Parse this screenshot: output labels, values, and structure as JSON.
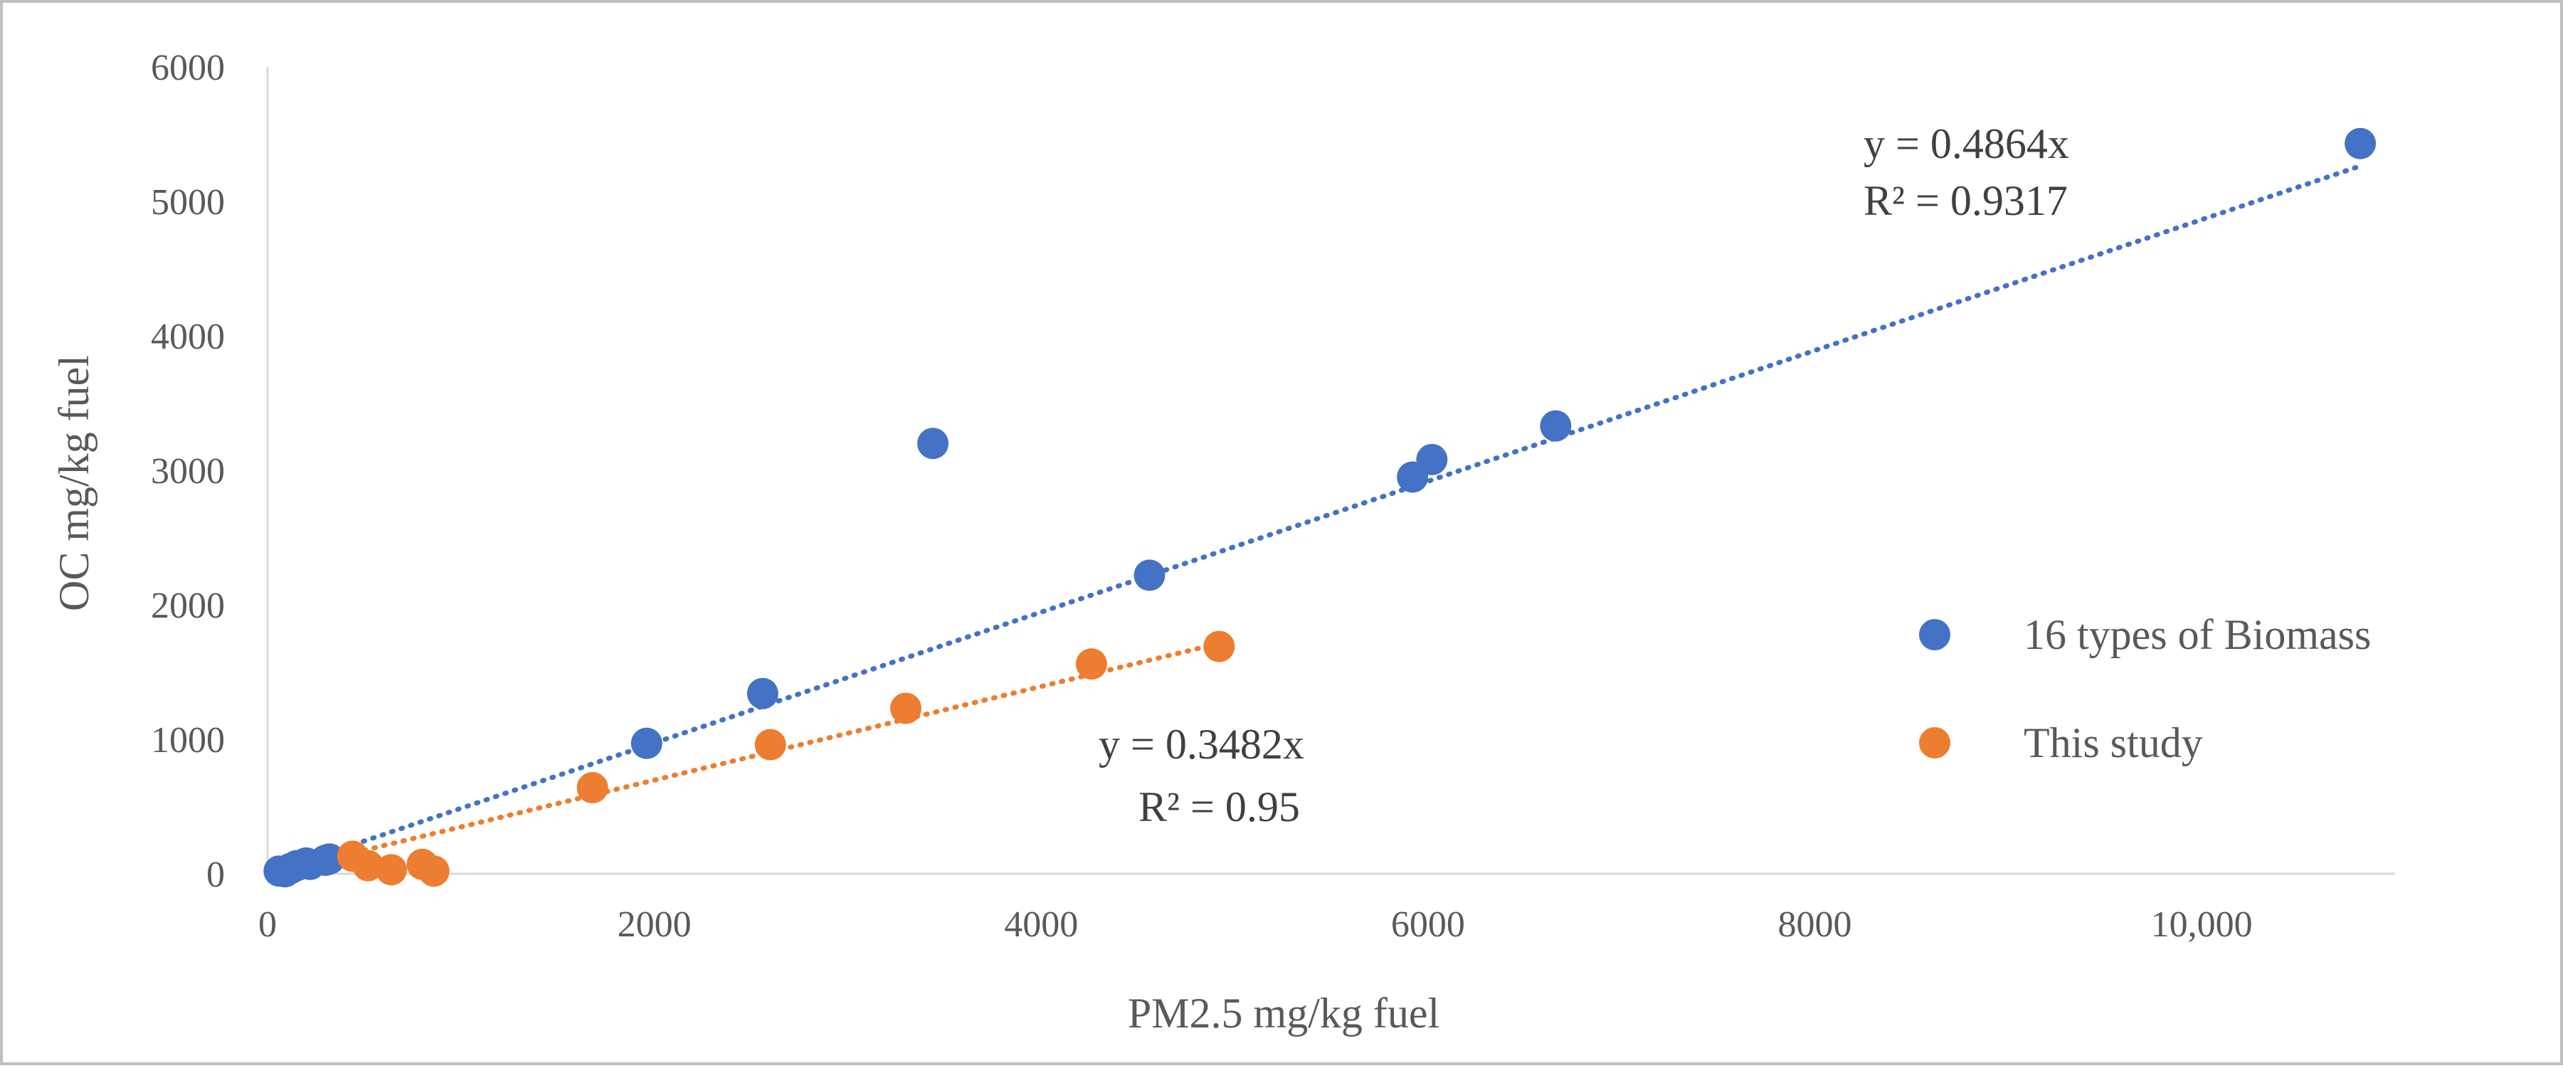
{
  "chart_data": {
    "type": "scatter",
    "title": "",
    "xlabel": "PM2.5 mg/kg fuel",
    "ylabel": "OC mg/kg fuel",
    "xlim": [
      0,
      11000
    ],
    "ylim": [
      0,
      6000
    ],
    "x_ticks": [
      0,
      2000,
      4000,
      6000,
      8000,
      10000
    ],
    "x_tick_labels": [
      "0",
      "2000",
      "4000",
      "6000",
      "8000",
      "10,000"
    ],
    "y_ticks": [
      0,
      1000,
      2000,
      3000,
      4000,
      5000,
      6000
    ],
    "y_tick_labels": [
      "0",
      "1000",
      "2000",
      "3000",
      "4000",
      "5000",
      "6000"
    ],
    "grid": false,
    "legend_position": "right",
    "series": [
      {
        "name": "16 types of Biomass",
        "color": "#4472C4",
        "points": [
          [
            60,
            20
          ],
          [
            90,
            15
          ],
          [
            120,
            40
          ],
          [
            150,
            60
          ],
          [
            200,
            80
          ],
          [
            220,
            70
          ],
          [
            300,
            100
          ],
          [
            320,
            110
          ],
          [
            1960,
            970
          ],
          [
            2560,
            1340
          ],
          [
            3440,
            3200
          ],
          [
            4560,
            2220
          ],
          [
            5920,
            2950
          ],
          [
            6020,
            3080
          ],
          [
            6660,
            3330
          ],
          [
            10820,
            5430
          ]
        ],
        "trendline": {
          "slope": 0.4864,
          "x_range": [
            0,
            10820
          ],
          "equation": "y = 0.4864x",
          "r2": "R² = 0.9317"
        }
      },
      {
        "name": "This study",
        "color": "#ED7D31",
        "points": [
          [
            440,
            130
          ],
          [
            520,
            60
          ],
          [
            640,
            30
          ],
          [
            800,
            70
          ],
          [
            860,
            20
          ],
          [
            1680,
            640
          ],
          [
            2600,
            960
          ],
          [
            3300,
            1230
          ],
          [
            4260,
            1560
          ],
          [
            4920,
            1690
          ]
        ],
        "trendline": {
          "slope": 0.3482,
          "x_range": [
            0,
            4920
          ],
          "equation": "y = 0.3482x",
          "r2": "R² = 0.95"
        }
      }
    ]
  }
}
